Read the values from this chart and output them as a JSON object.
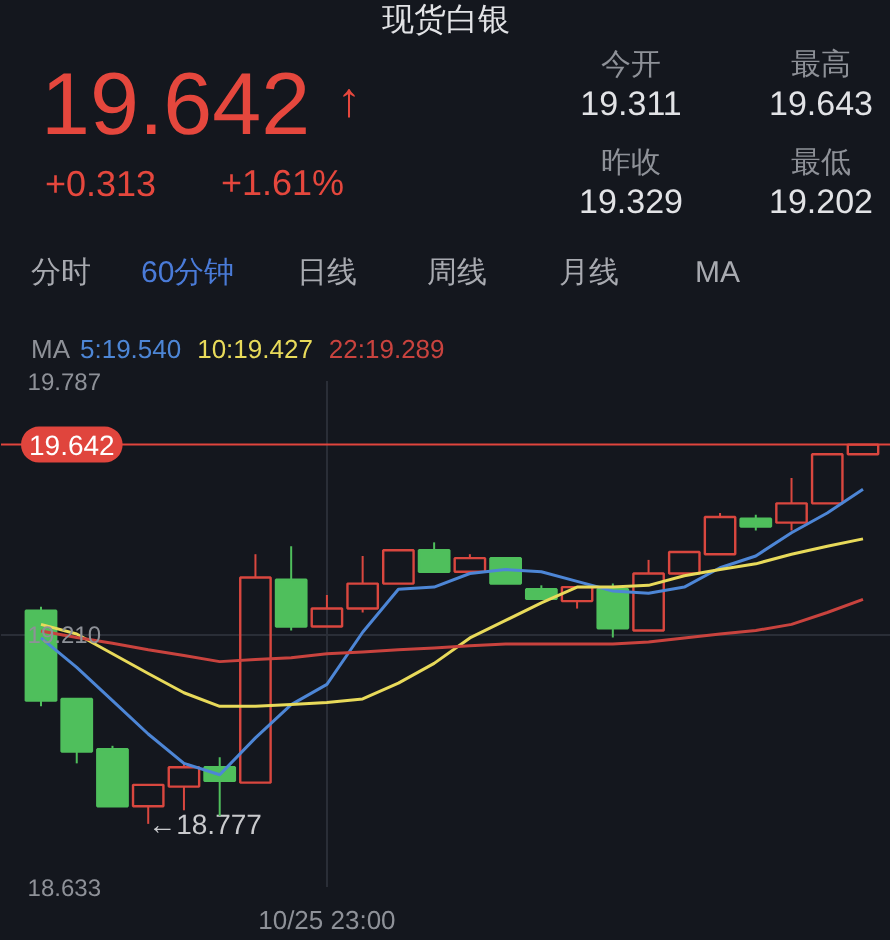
{
  "chart_data": {
    "type": "candlestick",
    "title": "现货白银",
    "subtitle": "19.642",
    "categories": [
      null,
      null,
      null,
      null,
      null,
      null,
      null,
      null,
      "10/25 23:00",
      null,
      null,
      null,
      null,
      null,
      null,
      null,
      null,
      null,
      null,
      null,
      null,
      null,
      null,
      null
    ],
    "ohlc": [
      [
        19.263,
        19.272,
        19.045,
        19.058
      ],
      [
        19.062,
        19.062,
        18.915,
        18.942
      ],
      [
        18.947,
        18.955,
        18.817,
        18.817
      ],
      [
        18.817,
        18.866,
        18.777,
        18.866
      ],
      [
        18.862,
        18.915,
        18.808,
        18.906
      ],
      [
        18.906,
        18.929,
        18.795,
        18.875
      ],
      [
        18.871,
        19.392,
        18.871,
        19.339
      ],
      [
        19.334,
        19.41,
        19.218,
        19.227
      ],
      [
        19.227,
        19.299,
        19.227,
        19.268
      ],
      [
        19.268,
        19.388,
        19.259,
        19.325
      ],
      [
        19.325,
        19.401,
        19.325,
        19.401
      ],
      [
        19.401,
        19.419,
        19.352,
        19.352
      ],
      [
        19.352,
        19.392,
        19.352,
        19.383
      ],
      [
        19.383,
        19.383,
        19.325,
        19.325
      ],
      [
        19.312,
        19.321,
        19.29,
        19.29
      ],
      [
        19.285,
        19.317,
        19.268,
        19.317
      ],
      [
        19.312,
        19.325,
        19.202,
        19.223
      ],
      [
        19.218,
        19.379,
        19.218,
        19.348
      ],
      [
        19.348,
        19.397,
        19.348,
        19.397
      ],
      [
        19.392,
        19.486,
        19.392,
        19.477
      ],
      [
        19.473,
        19.482,
        19.446,
        19.455
      ],
      [
        19.464,
        19.566,
        19.446,
        19.508
      ],
      [
        19.508,
        19.62,
        19.508,
        19.62
      ],
      [
        19.62,
        19.643,
        19.62,
        19.642
      ]
    ],
    "colors": [
      "#4fbf5c",
      "#4fbf5c",
      "#4fbf5c",
      "#d9473f",
      "#d9473f",
      "#4fbf5c",
      "#d9473f",
      "#4fbf5c",
      "#d9473f",
      "#d9473f",
      "#d9473f",
      "#4fbf5c",
      "#d9473f",
      "#4fbf5c",
      "#4fbf5c",
      "#d9473f",
      "#4fbf5c",
      "#d9473f",
      "#d9473f",
      "#d9473f",
      "#4fbf5c",
      "#d9473f",
      "#d9473f",
      "#d9473f"
    ],
    "series": [
      {
        "name": "5:19.540",
        "type": "line",
        "color": "#4d86d6",
        "values": [
          19.201,
          19.134,
          19.058,
          18.982,
          18.915,
          18.889,
          18.973,
          19.049,
          19.095,
          19.214,
          19.312,
          19.317,
          19.348,
          19.357,
          19.352,
          19.33,
          19.308,
          19.303,
          19.317,
          19.361,
          19.388,
          19.441,
          19.486,
          19.54
        ]
      },
      {
        "name": "10:19.427",
        "type": "line",
        "color": "#e8da5a",
        "values": [
          19.232,
          19.21,
          19.165,
          19.12,
          19.076,
          19.045,
          19.045,
          19.049,
          19.054,
          19.062,
          19.098,
          19.143,
          19.201,
          19.241,
          19.281,
          19.317,
          19.317,
          19.321,
          19.343,
          19.357,
          19.37,
          19.392,
          19.41,
          19.427
        ]
      },
      {
        "name": "22:19.289",
        "type": "line",
        "color": "#c9433e",
        "values": [
          19.217,
          19.202,
          19.189,
          19.174,
          19.161,
          19.147,
          19.152,
          19.156,
          19.165,
          19.169,
          19.174,
          19.178,
          19.183,
          19.187,
          19.187,
          19.187,
          19.187,
          19.192,
          19.201,
          19.21,
          19.218,
          19.232,
          19.259,
          19.289
        ]
      }
    ],
    "ylim": [
      18.633,
      19.787
    ],
    "yticks": [
      18.633,
      {
        "value": 19.21,
        "label": "19.210"
      },
      19.787
    ],
    "ref_lines": [
      {
        "axis": "y",
        "value": 19.642,
        "label": "19.642",
        "color": "#e0453d"
      }
    ],
    "legend": "top left",
    "legend_title": "MA",
    "grid": true,
    "annotations": [
      "↑",
      "+0.313",
      "+1.61%",
      "今开",
      "19.311",
      "最高",
      "19.643",
      "昨收",
      "19.329",
      "最低",
      "19.202",
      "分时",
      "60分钟",
      "日线",
      "周线",
      "月线",
      "MA",
      "←18.777"
    ]
  }
}
